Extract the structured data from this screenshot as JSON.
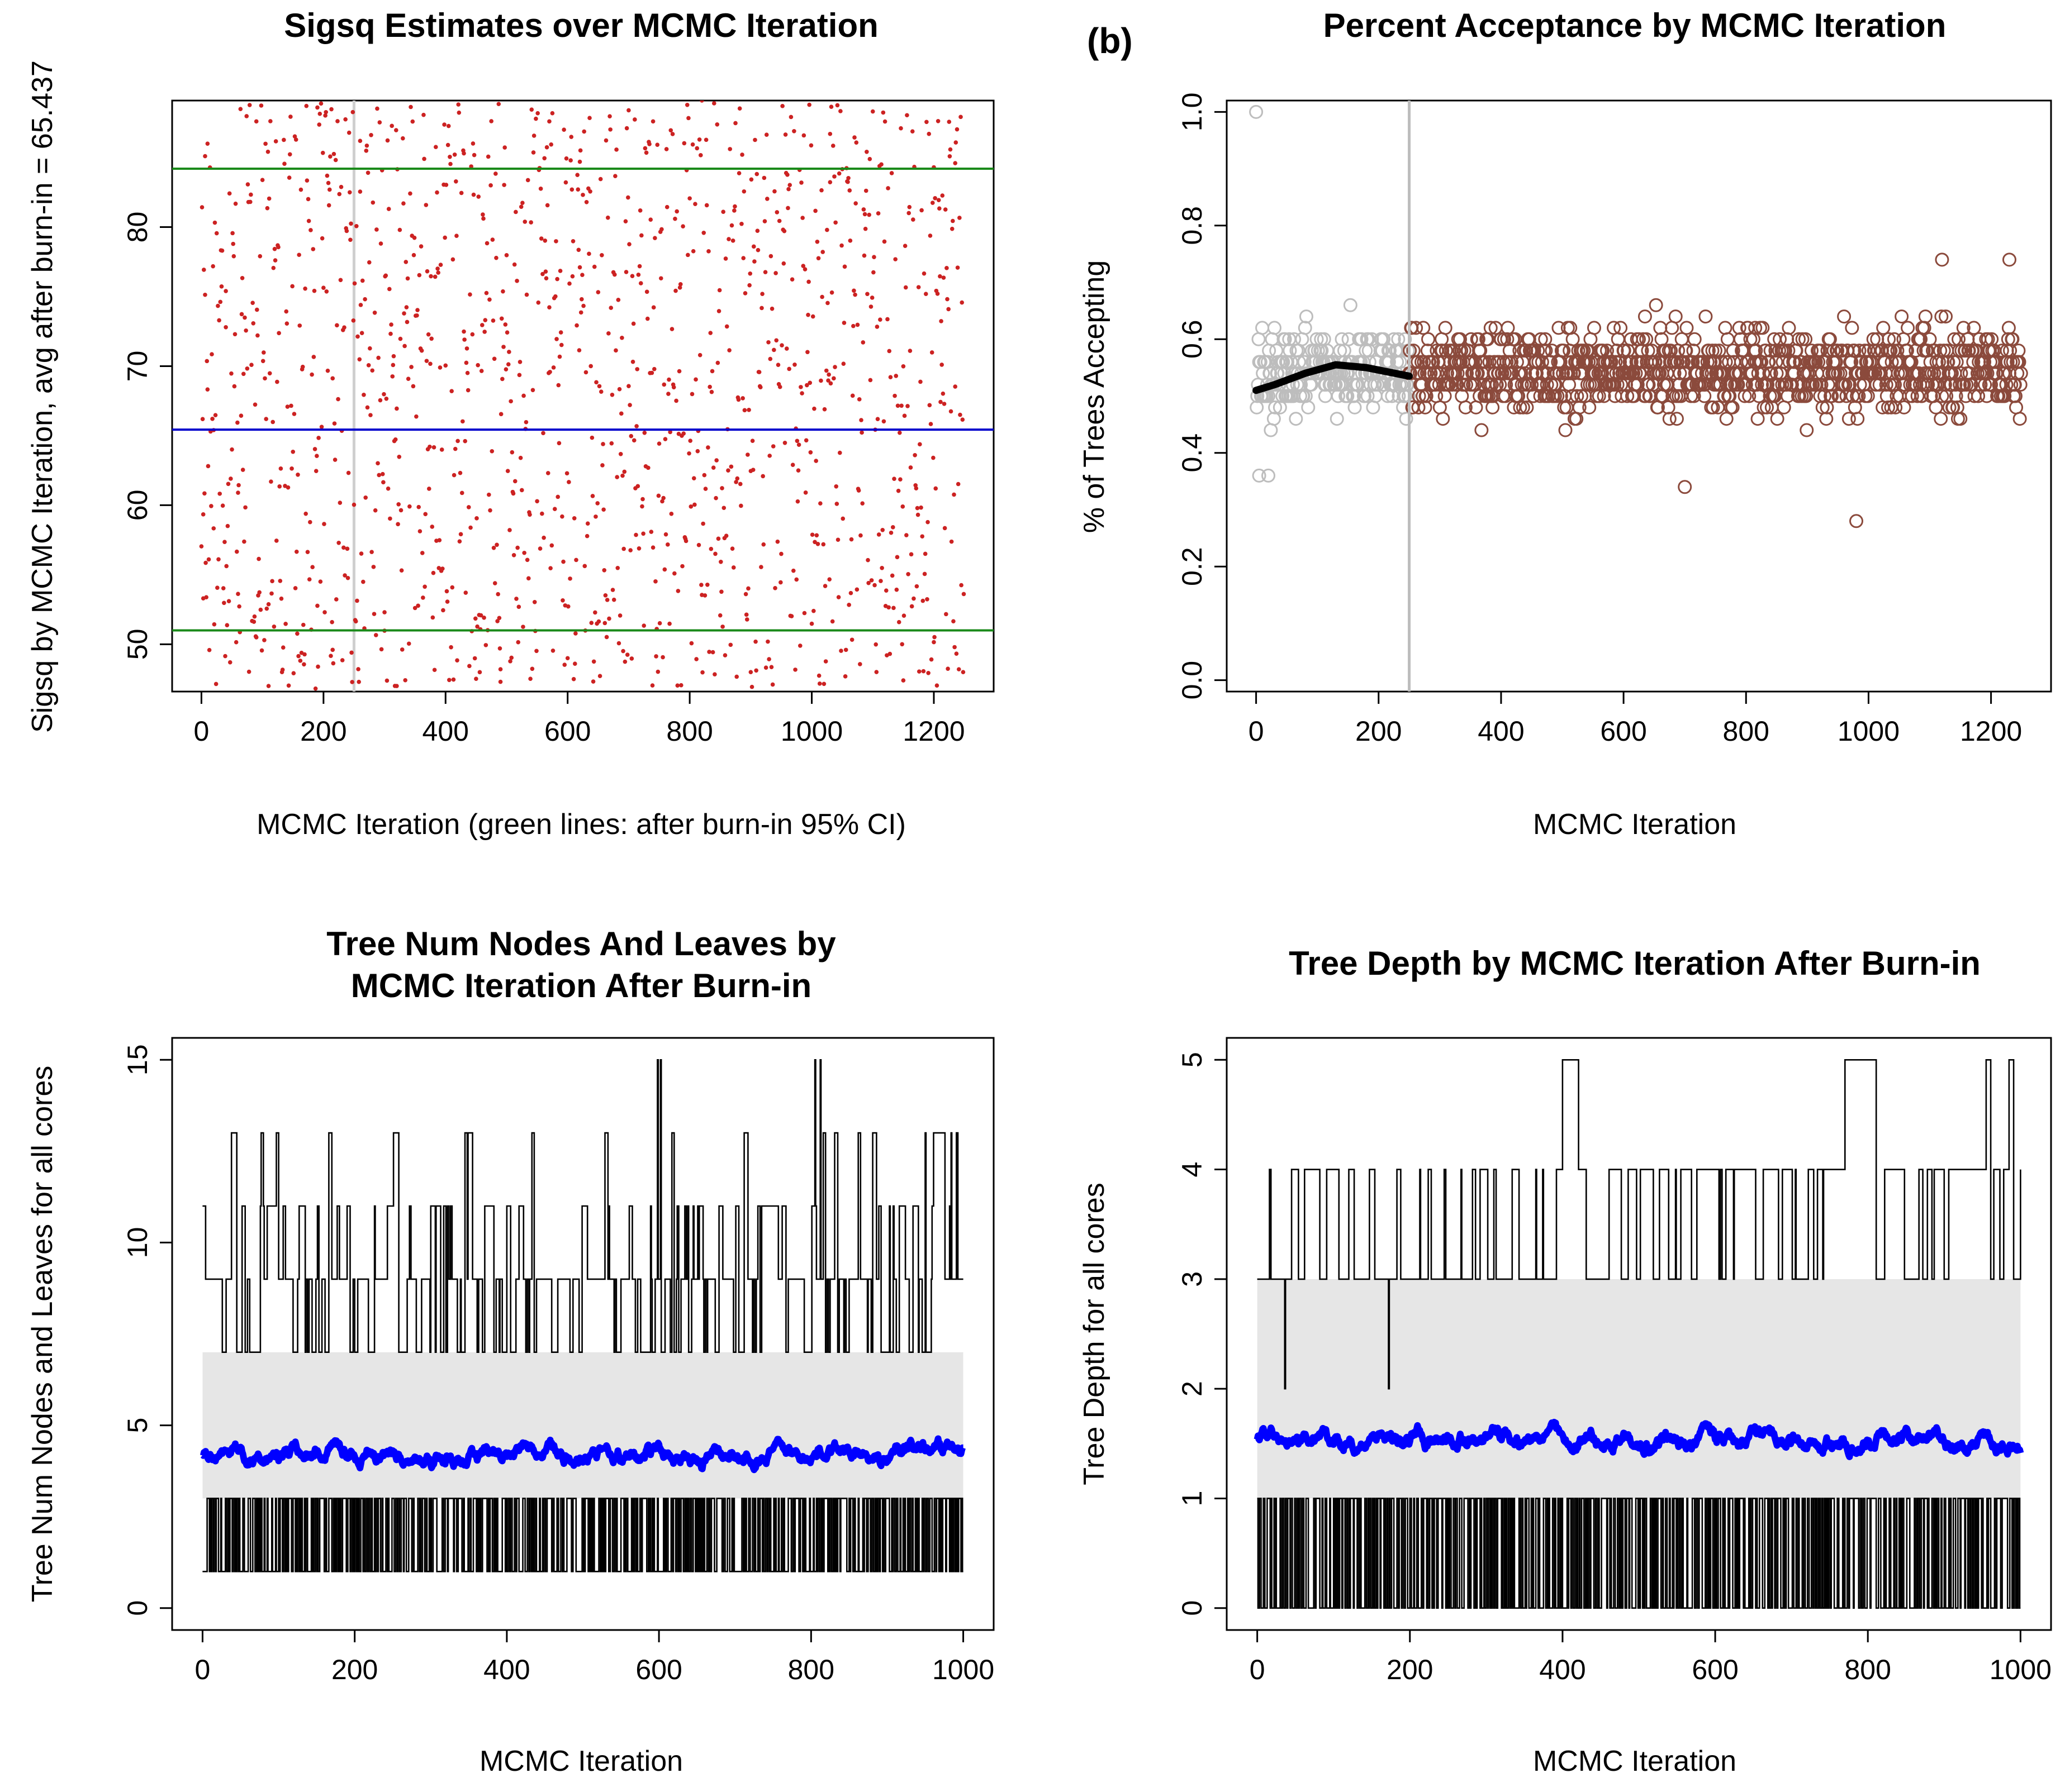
{
  "panel_labels": {
    "b": "(b)"
  },
  "chart_data": [
    {
      "type": "scatter",
      "title": "Sigsq Estimates over MCMC Iteration",
      "xlabel": "MCMC Iteration (green lines: after burn-in 95% CI)",
      "ylabel": "Sigsq by MCMC Iteration, avg after burn-in = 65.437",
      "xlim": [
        -48,
        1298
      ],
      "ylim": [
        46.6,
        89.1
      ],
      "x_ticks": [
        0,
        200,
        400,
        600,
        800,
        1000,
        1200
      ],
      "y_ticks": [
        50,
        60,
        70,
        80
      ],
      "x_tick_labels": [
        "0",
        "200",
        "400",
        "600",
        "800",
        "1000",
        "1200"
      ],
      "y_tick_labels": [
        "50",
        "60",
        "70",
        "80"
      ],
      "n_points": 1250,
      "burn_in": 250,
      "mean_after_burn_in": 65.437,
      "ci95_after_burn_in": [
        51.0,
        84.2
      ],
      "point_color": "#cc2222",
      "mean_line_color": "#0000cc",
      "ci_line_color": "#1a8a1a",
      "burn_in_line_color": "#cfcfcf",
      "sample_points": [
        [
          3,
          53.3
        ],
        [
          6,
          85.1
        ],
        [
          10,
          86.0
        ],
        [
          20,
          65.4
        ],
        [
          40,
          72.8
        ],
        [
          60,
          60.9
        ],
        [
          90,
          87.6
        ],
        [
          110,
          47.0
        ],
        [
          190,
          88.6
        ],
        [
          215,
          49.6
        ],
        [
          260,
          86.2
        ],
        [
          300,
          52.3
        ],
        [
          320,
          47.0
        ],
        [
          430,
          85.3
        ],
        [
          490,
          47.3
        ],
        [
          570,
          87.6
        ],
        [
          620,
          84.7
        ],
        [
          700,
          88.4
        ],
        [
          740,
          87.6
        ],
        [
          820,
          89.1
        ],
        [
          900,
          48.0
        ],
        [
          1030,
          86.7
        ],
        [
          1150,
          47.4
        ],
        [
          1200,
          84.3
        ],
        [
          1235,
          84.6
        ]
      ]
    },
    {
      "type": "scatter",
      "title": "Percent Acceptance by MCMC Iteration",
      "xlabel": "MCMC Iteration",
      "ylabel": "% of Trees Accepting",
      "xlim": [
        -48,
        1298
      ],
      "ylim": [
        -0.02,
        1.02
      ],
      "x_ticks": [
        0,
        200,
        400,
        600,
        800,
        1000,
        1200
      ],
      "y_ticks": [
        0.0,
        0.2,
        0.4,
        0.6,
        0.8,
        1.0
      ],
      "x_tick_labels": [
        "0",
        "200",
        "400",
        "600",
        "800",
        "1000",
        "1200"
      ],
      "y_tick_labels": [
        "0.0",
        "0.2",
        "0.4",
        "0.6",
        "0.8",
        "1.0"
      ],
      "n_points": 1250,
      "burn_in": 250,
      "values_step": 0.02,
      "burn_in_point_color": "#bdbdbd",
      "after_point_color": "#8b4a3c",
      "smooth_line_color": "#000000",
      "smooth_line": [
        [
          0,
          0.51
        ],
        [
          30,
          0.52
        ],
        [
          80,
          0.54
        ],
        [
          130,
          0.555
        ],
        [
          180,
          0.55
        ],
        [
          250,
          0.535
        ]
      ],
      "notable_points": [
        [
          0,
          1.0
        ],
        [
          980,
          0.28
        ],
        [
          700,
          0.34
        ],
        [
          1120,
          0.74
        ],
        [
          1230,
          0.74
        ],
        [
          5,
          0.36
        ],
        [
          20,
          0.36
        ]
      ]
    },
    {
      "type": "line",
      "title": "Tree Num Nodes And Leaves by\nMCMC Iteration After Burn-in",
      "title_lines": [
        "Tree Num Nodes And Leaves by",
        "MCMC Iteration After Burn-in"
      ],
      "xlabel": "MCMC Iteration",
      "ylabel": "Tree Num Nodes and Leaves for all cores",
      "xlim": [
        -40,
        1040
      ],
      "ylim": [
        -0.6,
        15.6
      ],
      "x_ticks": [
        0,
        200,
        400,
        600,
        800,
        1000
      ],
      "y_ticks": [
        0,
        5,
        10,
        15
      ],
      "x_tick_labels": [
        "0",
        "200",
        "400",
        "600",
        "800",
        "1000"
      ],
      "y_tick_labels": [
        "0",
        "5",
        "10",
        "15"
      ],
      "n_iterations": 1000,
      "series": [
        {
          "role": "max",
          "color": "#000000",
          "baseline": 9,
          "min": 7,
          "max_value": 15
        },
        {
          "role": "min",
          "color": "#000000",
          "values_set": [
            1,
            3
          ]
        },
        {
          "role": "mean",
          "color": "#0000ff",
          "level": 4.2,
          "range": [
            3.6,
            5.0
          ]
        }
      ],
      "gray_band_color": "#e6e6e6",
      "max_peaks": [
        [
          97,
          13
        ],
        [
          252,
          13
        ],
        [
          598,
          15
        ],
        [
          602,
          15
        ],
        [
          805,
          15
        ],
        [
          812,
          15
        ],
        [
          950,
          13
        ],
        [
          975,
          13
        ]
      ]
    },
    {
      "type": "line",
      "title": "Tree Depth by MCMC Iteration After Burn-in",
      "xlabel": "MCMC Iteration",
      "ylabel": "Tree Depth for all cores",
      "xlim": [
        -40,
        1040
      ],
      "ylim": [
        -0.2,
        5.2
      ],
      "x_ticks": [
        0,
        200,
        400,
        600,
        800,
        1000
      ],
      "y_ticks": [
        0,
        1,
        2,
        3,
        4,
        5
      ],
      "x_tick_labels": [
        "0",
        "200",
        "400",
        "600",
        "800",
        "1000"
      ],
      "y_tick_labels": [
        "0",
        "1",
        "2",
        "3",
        "4",
        "5"
      ],
      "n_iterations": 1000,
      "series": [
        {
          "role": "max",
          "color": "#000000",
          "values_set": [
            3,
            4,
            5
          ]
        },
        {
          "role": "min",
          "color": "#000000",
          "values_set": [
            0,
            1
          ]
        },
        {
          "role": "mean",
          "color": "#0000ff",
          "level": 1.52,
          "range": [
            1.3,
            1.9
          ]
        }
      ],
      "gray_band_color": "#e6e6e6",
      "depth_five_segments": [
        [
          400,
          420
        ],
        [
          770,
          810
        ],
        [
          955,
          960
        ],
        [
          985,
          990
        ]
      ],
      "depth_two_drops": [
        36,
        172
      ]
    }
  ]
}
